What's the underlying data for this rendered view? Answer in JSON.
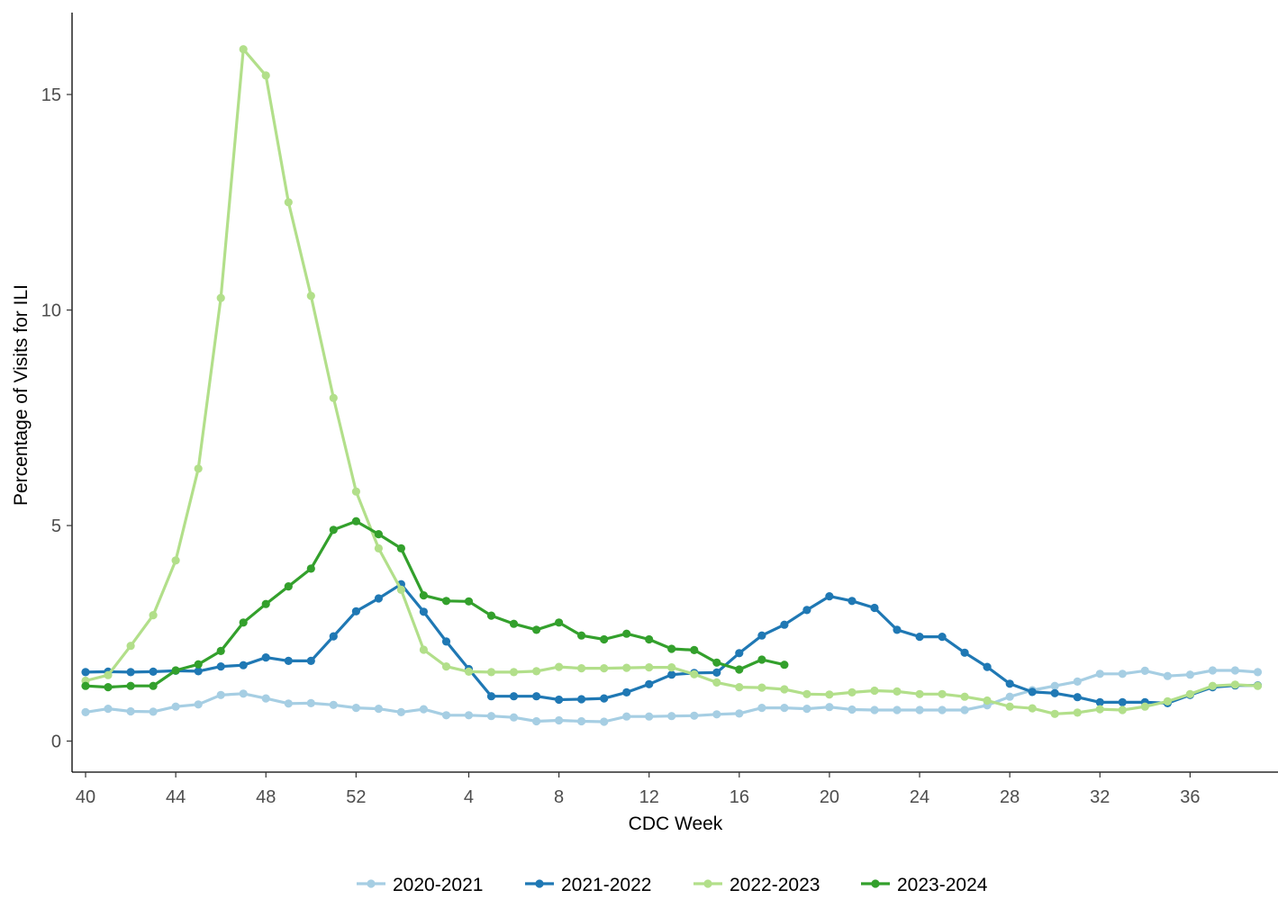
{
  "chart_data": {
    "type": "line",
    "title": "",
    "xlabel": "CDC Week",
    "ylabel": "Percentage of Visits for ILI",
    "x_tick_labels": [
      "40",
      "44",
      "48",
      "52",
      "4",
      "8",
      "12",
      "16",
      "20",
      "24",
      "28",
      "32",
      "36"
    ],
    "x_tick_index": [
      0,
      4,
      8,
      12,
      17,
      21,
      25,
      29,
      33,
      37,
      41,
      45,
      49
    ],
    "x_range": [
      -0.6,
      52.9
    ],
    "y_ticks": [
      0,
      5,
      10,
      15
    ],
    "ylim": [
      -0.72,
      16.9
    ],
    "grid": false,
    "legend_position": "bottom",
    "x_weeks": [
      40,
      41,
      42,
      43,
      44,
      45,
      46,
      47,
      48,
      49,
      50,
      51,
      52,
      53,
      1,
      2,
      3,
      4,
      5,
      6,
      7,
      8,
      9,
      10,
      11,
      12,
      13,
      14,
      15,
      16,
      17,
      18,
      19,
      20,
      21,
      22,
      23,
      24,
      25,
      26,
      27,
      28,
      29,
      30,
      31,
      32,
      33,
      34,
      35,
      36,
      37,
      38,
      39
    ],
    "series": [
      {
        "name": "2020-2021",
        "color": "#a6cee3",
        "values": [
          0.67,
          0.75,
          0.69,
          0.68,
          0.8,
          0.85,
          1.07,
          1.1,
          0.99,
          0.87,
          0.88,
          0.84,
          0.77,
          0.75,
          0.67,
          0.74,
          0.6,
          0.6,
          0.58,
          0.55,
          0.46,
          0.48,
          0.46,
          0.45,
          0.57,
          0.57,
          0.58,
          0.59,
          0.62,
          0.64,
          0.77,
          0.77,
          0.75,
          0.79,
          0.73,
          0.72,
          0.72,
          0.72,
          0.72,
          0.72,
          0.83,
          1.03,
          1.18,
          1.28,
          1.38,
          1.56,
          1.56,
          1.63,
          1.51,
          1.54,
          1.64,
          1.64,
          1.6
        ]
      },
      {
        "name": "2021-2022",
        "color": "#1f78b4",
        "values": [
          1.6,
          1.61,
          1.6,
          1.61,
          1.63,
          1.62,
          1.73,
          1.76,
          1.94,
          1.86,
          1.86,
          2.43,
          3.01,
          3.31,
          3.64,
          3.0,
          2.31,
          1.67,
          1.04,
          1.04,
          1.04,
          0.96,
          0.97,
          0.99,
          1.13,
          1.32,
          1.54,
          1.58,
          1.59,
          2.04,
          2.45,
          2.7,
          3.04,
          3.36,
          3.25,
          3.09,
          2.58,
          2.42,
          2.42,
          2.05,
          1.72,
          1.33,
          1.14,
          1.11,
          1.02,
          0.9,
          0.9,
          0.9,
          0.88,
          1.07,
          1.25,
          1.29,
          1.29
        ]
      },
      {
        "name": "2022-2023",
        "color": "#b2df8a",
        "values": [
          1.4,
          1.53,
          2.21,
          2.92,
          4.19,
          6.32,
          10.28,
          16.05,
          15.44,
          12.5,
          10.33,
          7.96,
          5.79,
          4.47,
          3.51,
          2.12,
          1.73,
          1.61,
          1.6,
          1.6,
          1.62,
          1.72,
          1.69,
          1.69,
          1.7,
          1.71,
          1.71,
          1.55,
          1.36,
          1.25,
          1.24,
          1.2,
          1.09,
          1.08,
          1.13,
          1.17,
          1.15,
          1.09,
          1.09,
          1.03,
          0.94,
          0.8,
          0.76,
          0.63,
          0.66,
          0.74,
          0.72,
          0.8,
          0.92,
          1.09,
          1.28,
          1.31,
          1.28
        ]
      },
      {
        "name": "2023-2024",
        "color": "#33a02c",
        "values": [
          1.28,
          1.25,
          1.28,
          1.28,
          1.64,
          1.78,
          2.09,
          2.75,
          3.18,
          3.59,
          4.0,
          4.9,
          5.1,
          4.8,
          4.47,
          3.38,
          3.25,
          3.24,
          2.91,
          2.72,
          2.58,
          2.75,
          2.45,
          2.36,
          2.49,
          2.36,
          2.14,
          2.11,
          1.82,
          1.66,
          1.89,
          1.77
        ]
      }
    ]
  }
}
